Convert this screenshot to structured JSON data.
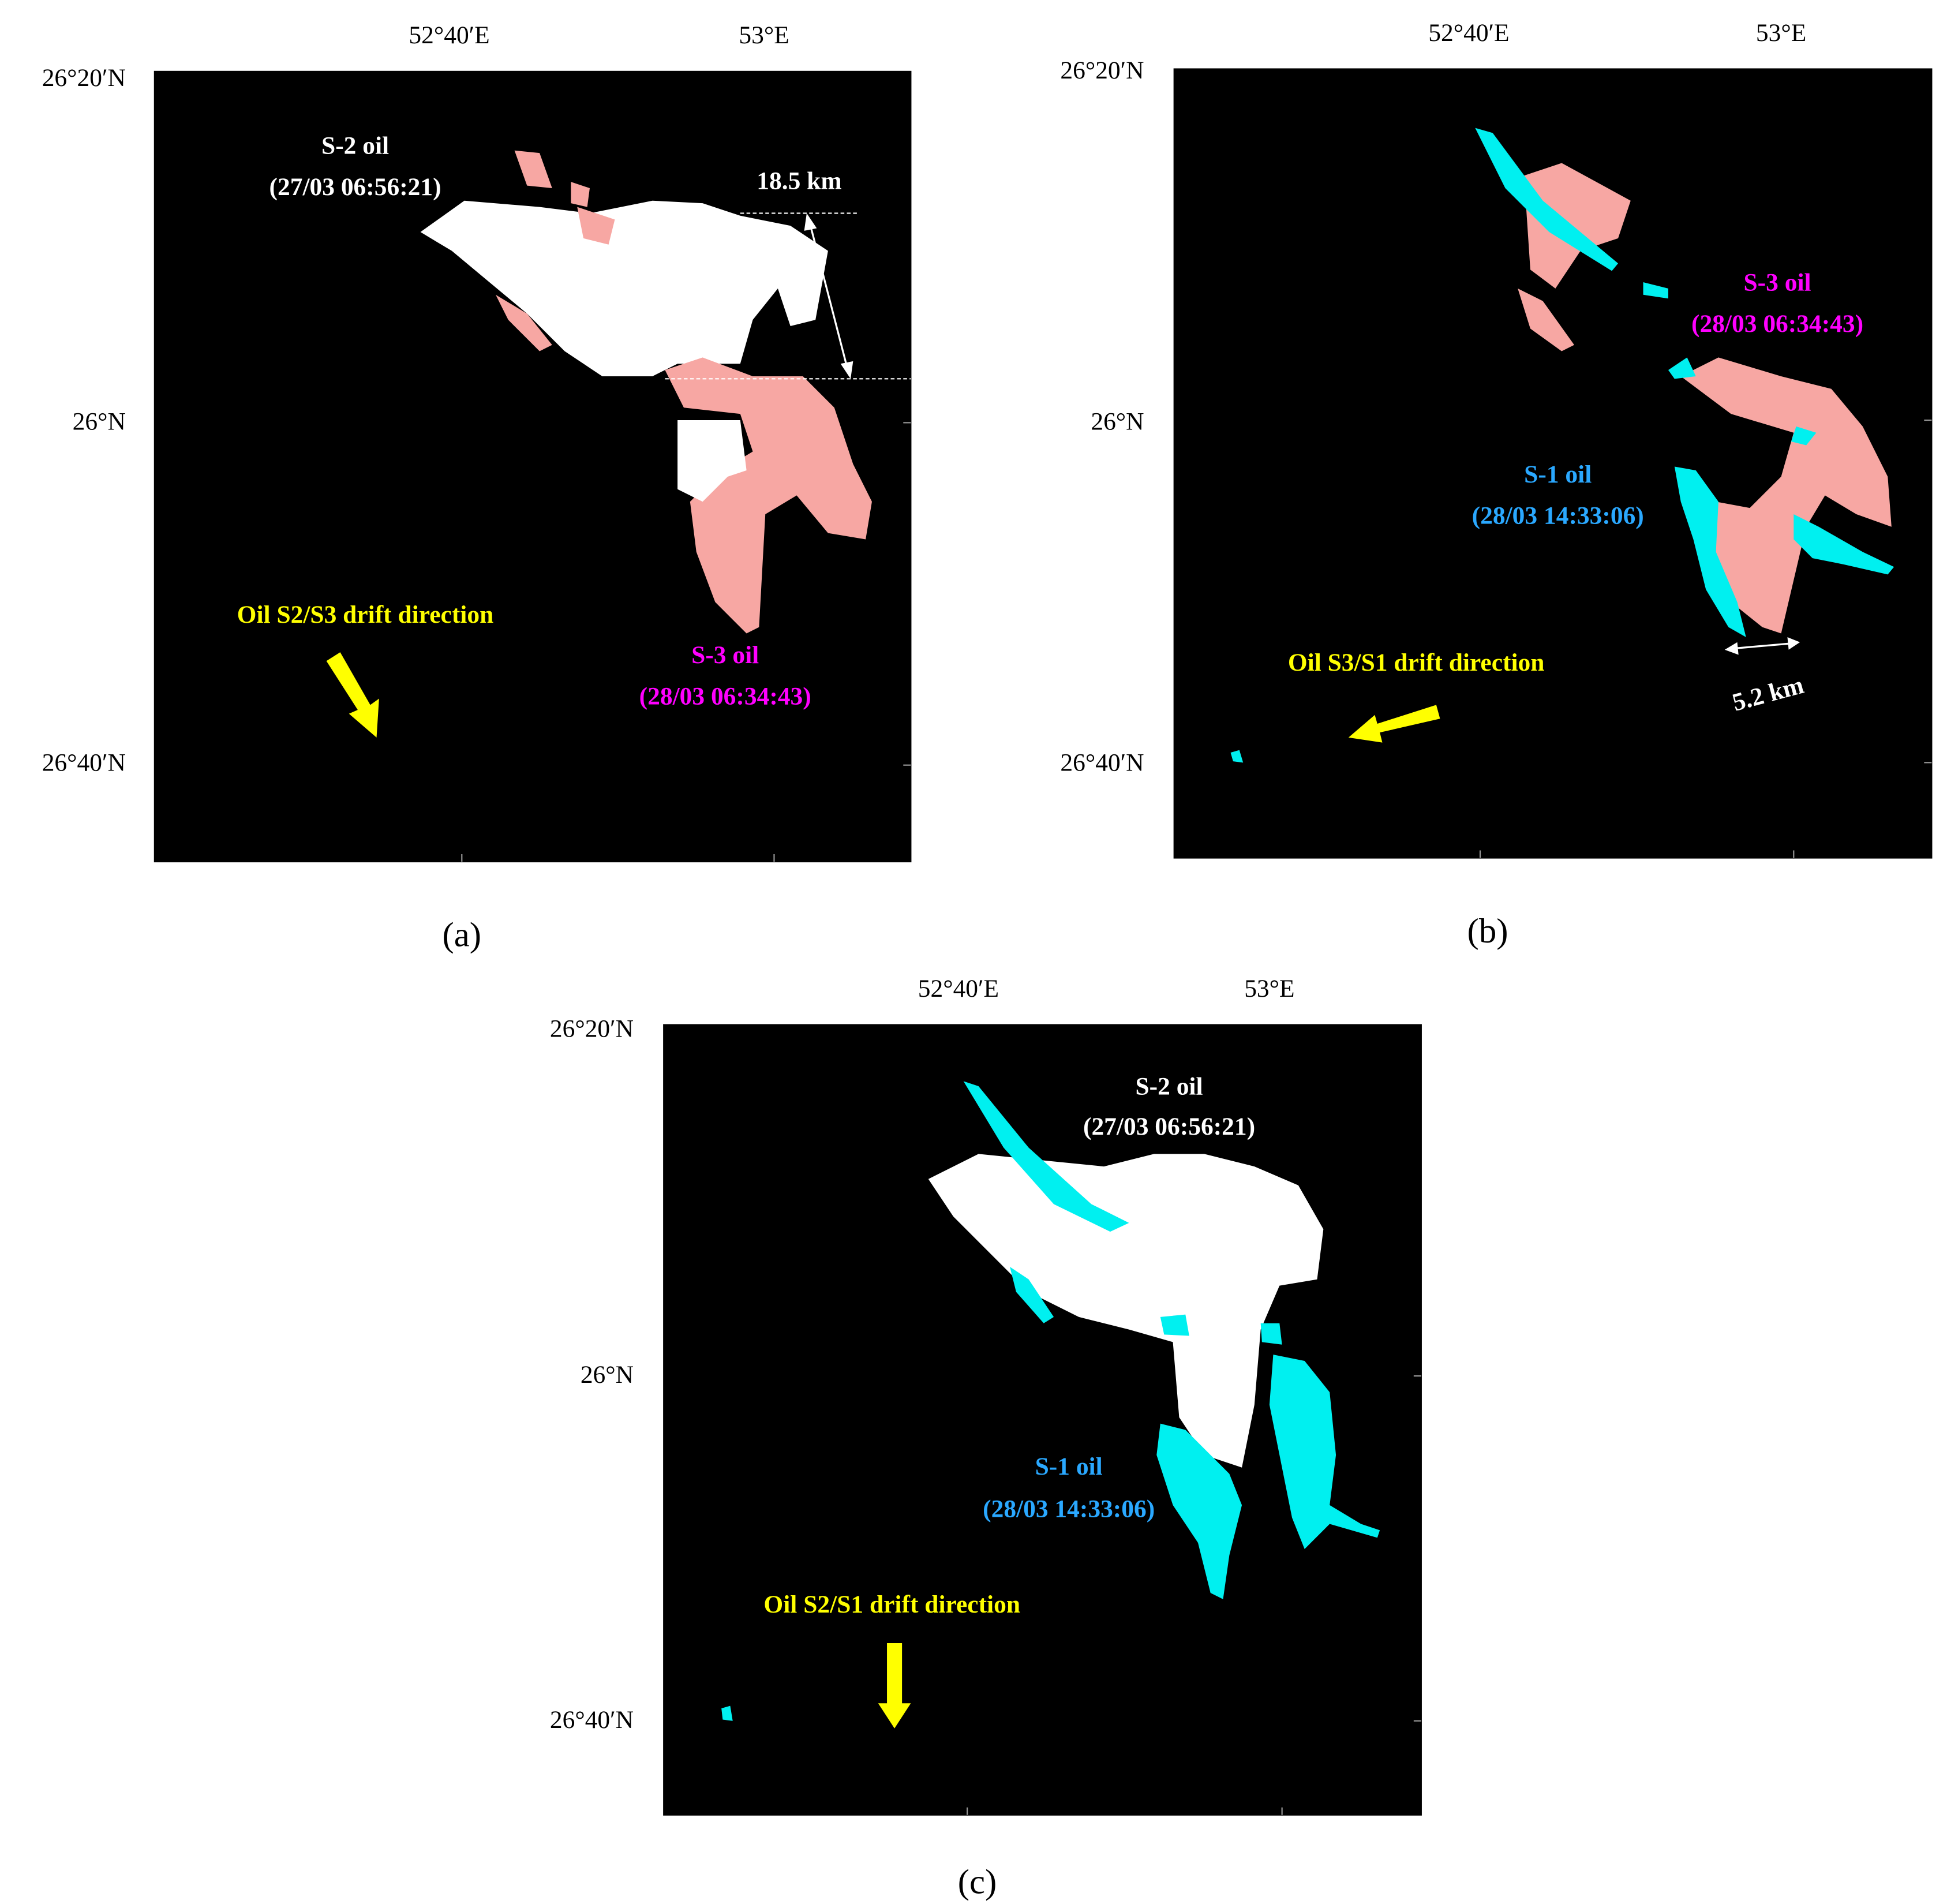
{
  "panels": [
    {
      "label": "(a)",
      "x_labels": [
        "52°40′E",
        "53°E"
      ],
      "y_labels": [
        "26°20′N",
        "26°N",
        "26°40′N"
      ],
      "annotations": [
        "S-2 oil",
        "(27/03 06:56:21)",
        "18.5 km",
        "S-3 oil",
        "(28/03 06:34:43)",
        "Oil S2/S3 drift direction"
      ]
    },
    {
      "label": "(b)",
      "x_labels": [
        "52°40′E",
        "53°E"
      ],
      "y_labels": [
        "26°20′N",
        "26°N",
        "26°40′N"
      ],
      "annotations": [
        "S-3 oil",
        "(28/03 06:34:43)",
        "S-1 oil",
        "(28/03 14:33:06)",
        "5.2 km",
        "Oil S3/S1 drift direction"
      ]
    },
    {
      "label": "(c)",
      "x_labels": [
        "52°40′E",
        "53°E"
      ],
      "y_labels": [
        "26°20′N",
        "26°N",
        "26°40′N"
      ],
      "annotations": [
        "S-2 oil",
        "(27/03 06:56:21)",
        "S-1 oil",
        "(28/03 14:33:06)",
        "Oil S2/S1 drift direction"
      ]
    }
  ]
}
